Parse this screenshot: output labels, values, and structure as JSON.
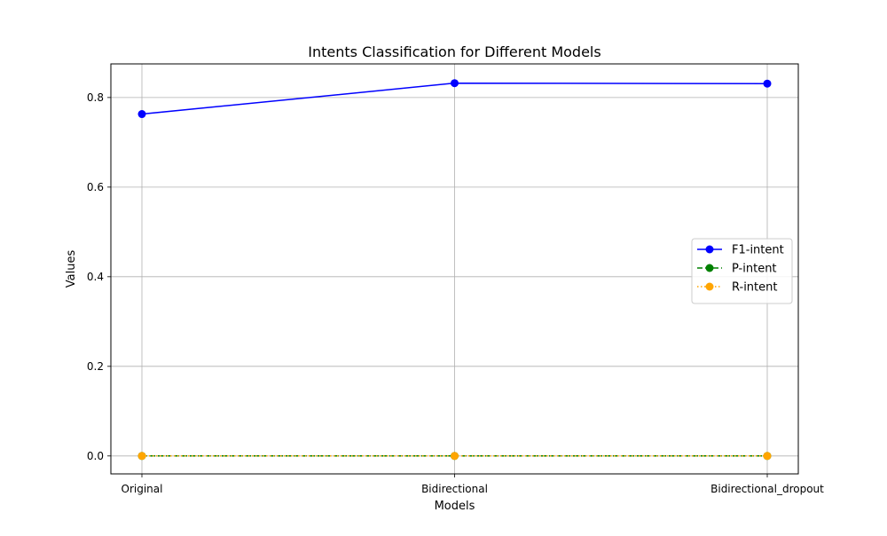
{
  "chart_data": {
    "type": "line",
    "title": "Intents Classification for Different Models",
    "xlabel": "Models",
    "ylabel": "Values",
    "categories": [
      "Original",
      "Bidirectional",
      "Bidirectional_dropout"
    ],
    "ylim": [
      -0.04,
      0.875
    ],
    "yticks": [
      0.0,
      0.2,
      0.4,
      0.6,
      0.8
    ],
    "ytick_labels": [
      "0.0",
      "0.2",
      "0.4",
      "0.6",
      "0.8"
    ],
    "grid": true,
    "legend_position": "center-right",
    "series": [
      {
        "name": "F1-intent",
        "values": [
          0.763,
          0.832,
          0.831
        ],
        "color": "#0000ff",
        "linestyle": "solid",
        "marker": "circle"
      },
      {
        "name": "P-intent",
        "values": [
          0.0,
          0.0,
          0.0
        ],
        "color": "#008000",
        "linestyle": "dashed",
        "marker": "circle"
      },
      {
        "name": "R-intent",
        "values": [
          0.0,
          0.0,
          0.0
        ],
        "color": "#ffa500",
        "linestyle": "dotted",
        "marker": "circle"
      }
    ]
  }
}
